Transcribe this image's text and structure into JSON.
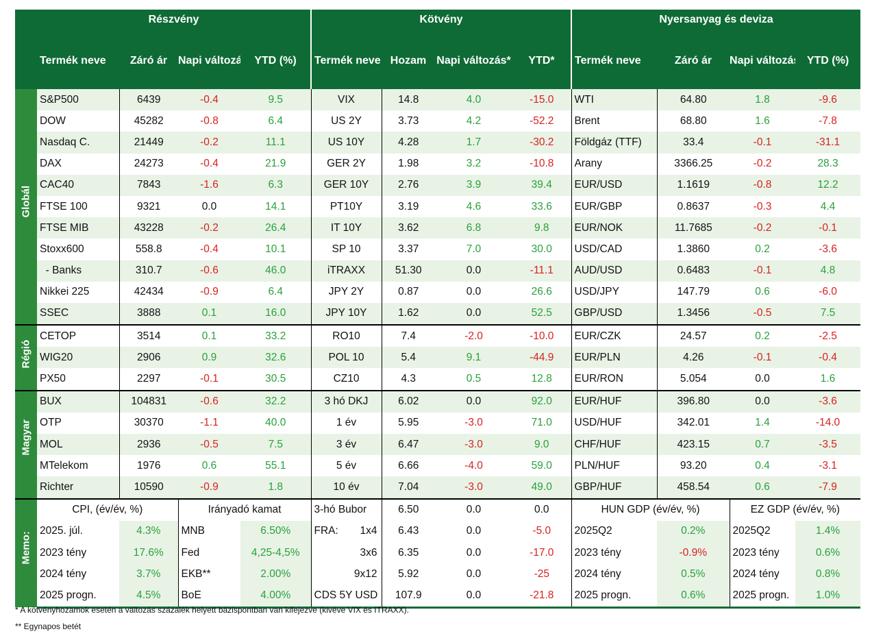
{
  "header": {
    "sections": [
      "Részvény",
      "Kötvény",
      "Nyersanyag és deviza"
    ],
    "stock_cols": [
      "Termék neve",
      "Záró ár",
      "Napi változás (%)",
      "YTD (%)"
    ],
    "bond_cols": [
      "Termék neve",
      "Hozam",
      "Napi változás*",
      "YTD*"
    ],
    "fx_cols": [
      "Termék neve",
      "Záró ár",
      "Napi változás (%)",
      "YTD (%)"
    ]
  },
  "groups": [
    {
      "label": "Globál",
      "rows": [
        {
          "s": [
            "S&P500",
            "6439",
            "-0.4",
            "9.5"
          ],
          "b": [
            "VIX",
            "14.8",
            "4.0",
            "-15.0"
          ],
          "f": [
            "WTI",
            "64.80",
            "1.8",
            "-9.6"
          ]
        },
        {
          "s": [
            "DOW",
            "45282",
            "-0.8",
            "6.4"
          ],
          "b": [
            "US 2Y",
            "3.73",
            "4.2",
            "-52.2"
          ],
          "f": [
            "Brent",
            "68.80",
            "1.6",
            "-7.8"
          ]
        },
        {
          "s": [
            "Nasdaq C.",
            "21449",
            "-0.2",
            "11.1"
          ],
          "b": [
            "US 10Y",
            "4.28",
            "1.7",
            "-30.2"
          ],
          "f": [
            "Földgáz (TTF)",
            "33.4",
            "-0.1",
            "-31.1"
          ]
        },
        {
          "s": [
            "DAX",
            "24273",
            "-0.4",
            "21.9"
          ],
          "b": [
            "GER 2Y",
            "1.98",
            "3.2",
            "-10.8"
          ],
          "f": [
            "Arany",
            "3366.25",
            "-0.2",
            "28.3"
          ]
        },
        {
          "s": [
            "CAC40",
            "7843",
            "-1.6",
            "6.3"
          ],
          "b": [
            "GER 10Y",
            "2.76",
            "3.9",
            "39.4"
          ],
          "f": [
            "EUR/USD",
            "1.1619",
            "-0.8",
            "12.2"
          ]
        },
        {
          "s": [
            "FTSE 100",
            "9321",
            "0.0",
            "14.1"
          ],
          "b": [
            "PT10Y",
            "3.19",
            "4.6",
            "33.6"
          ],
          "f": [
            "EUR/GBP",
            "0.8637",
            "-0.3",
            "4.4"
          ]
        },
        {
          "s": [
            "FTSE MIB",
            "43228",
            "-0.2",
            "26.4"
          ],
          "b": [
            "IT 10Y",
            "3.62",
            "6.8",
            "9.8"
          ],
          "f": [
            "EUR/NOK",
            "11.7685",
            "-0.2",
            "-0.1"
          ]
        },
        {
          "s": [
            "Stoxx600",
            "558.8",
            "-0.4",
            "10.1"
          ],
          "b": [
            "SP 10",
            "3.37",
            "7.0",
            "30.0"
          ],
          "f": [
            "USD/CAD",
            "1.3860",
            "0.2",
            "-3.6"
          ]
        },
        {
          "s": [
            "  - Banks",
            "310.7",
            "-0.6",
            "46.0"
          ],
          "b": [
            "iTRAXX",
            "51.30",
            "0.0",
            "-11.1"
          ],
          "f": [
            "AUD/USD",
            "0.6483",
            "-0.1",
            "4.8"
          ]
        },
        {
          "s": [
            "Nikkei 225",
            "42434",
            "-0.9",
            "6.4"
          ],
          "b": [
            "JPY 2Y",
            "0.87",
            "0.0",
            "26.6"
          ],
          "f": [
            "USD/JPY",
            "147.79",
            "0.6",
            "-6.0"
          ]
        },
        {
          "s": [
            "SSEC",
            "3888",
            "0.1",
            "16.0"
          ],
          "b": [
            "JPY 10Y",
            "1.62",
            "0.0",
            "52.5"
          ],
          "f": [
            "GBP/USD",
            "1.3456",
            "-0.5",
            "7.5"
          ]
        }
      ]
    },
    {
      "label": "Régió",
      "rows": [
        {
          "s": [
            "CETOP",
            "3514",
            "0.1",
            "33.2"
          ],
          "b": [
            "RO10",
            "7.4",
            "-2.0",
            "-10.0"
          ],
          "f": [
            "EUR/CZK",
            "24.57",
            "0.2",
            "-2.5"
          ]
        },
        {
          "s": [
            "WIG20",
            "2906",
            "0.9",
            "32.6"
          ],
          "b": [
            "POL 10",
            "5.4",
            "9.1",
            "-44.9"
          ],
          "f": [
            "EUR/PLN",
            "4.26",
            "-0.1",
            "-0.4"
          ]
        },
        {
          "s": [
            "PX50",
            "2297",
            "-0.1",
            "30.5"
          ],
          "b": [
            "CZ10",
            "4.3",
            "0.5",
            "12.8"
          ],
          "f": [
            "EUR/RON",
            "5.054",
            "0.0",
            "1.6"
          ]
        }
      ]
    },
    {
      "label": "Magyar",
      "rows": [
        {
          "s": [
            "BUX",
            "104831",
            "-0.6",
            "32.2"
          ],
          "b": [
            "3 hó DKJ",
            "6.02",
            "0.0",
            "92.0"
          ],
          "f": [
            "EUR/HUF",
            "396.80",
            "0.0",
            "-3.6"
          ]
        },
        {
          "s": [
            "OTP",
            "30370",
            "-1.1",
            "40.0"
          ],
          "b": [
            "1 év",
            "5.95",
            "-3.0",
            "71.0"
          ],
          "f": [
            "USD/HUF",
            "342.01",
            "1.4",
            "-14.0"
          ]
        },
        {
          "s": [
            "MOL",
            "2936",
            "-0.5",
            "7.5"
          ],
          "b": [
            "3 év",
            "6.47",
            "-3.0",
            "9.0"
          ],
          "f": [
            "CHF/HUF",
            "423.15",
            "0.7",
            "-3.5"
          ]
        },
        {
          "s": [
            "MTelekom",
            "1976",
            "0.6",
            "55.1"
          ],
          "b": [
            "5 év",
            "6.66",
            "-4.0",
            "59.0"
          ],
          "f": [
            "PLN/HUF",
            "93.20",
            "0.4",
            "-3.1"
          ]
        },
        {
          "s": [
            "Richter",
            "10590",
            "-0.9",
            "1.8"
          ],
          "b": [
            "10 év",
            "7.04",
            "-3.0",
            "49.0"
          ],
          "f": [
            "GBP/HUF",
            "458.54",
            "0.6",
            "-7.9"
          ]
        }
      ]
    }
  ],
  "memo": {
    "label": "Memo:",
    "cpi_header": "CPI, (év/év, %)",
    "rate_header": "Irányadó kamat",
    "hun_gdp_header": "HUN GDP (év/év, %)",
    "ez_gdp_header": "EZ GDP (év/év, %)",
    "fra_label": "FRA:",
    "rows": [
      {
        "cpi": [
          "2025. júl.",
          "4.3%"
        ],
        "rate": [
          "MNB",
          "6.50%"
        ],
        "bond": [
          "3-hó Bubor",
          "6.50",
          "0.0",
          "0.0"
        ],
        "hun": [
          "2025Q2",
          "0.2%"
        ],
        "ez": [
          "2025Q2",
          "1.4%"
        ]
      },
      {
        "cpi": [
          "2023 tény",
          "17.6%"
        ],
        "rate": [
          "Fed",
          "4,25-4,5%"
        ],
        "bond": [
          "1x4",
          "6.43",
          "0.0",
          "-5.0"
        ],
        "hun": [
          "2023 tény",
          "-0.9%"
        ],
        "ez": [
          "2023 tény",
          "0.6%"
        ]
      },
      {
        "cpi": [
          "2024 tény",
          "3.7%"
        ],
        "rate": [
          "EKB**",
          "2.00%"
        ],
        "bond": [
          "3x6",
          "6.35",
          "0.0",
          "-17.0"
        ],
        "hun": [
          "2024 tény",
          "0.5%"
        ],
        "ez": [
          "2024 tény",
          "0.8%"
        ]
      },
      {
        "cpi": [
          "2025 progn.",
          "4.5%"
        ],
        "rate": [
          "BoE",
          "4.00%"
        ],
        "bond": [
          "9x12",
          "5.92",
          "0.0",
          "-25"
        ],
        "hun": [
          "2025 progn.",
          "0.6%"
        ],
        "ez": [
          "2025 progn.",
          "1.0%"
        ]
      },
      {
        "cpi": [],
        "rate": [],
        "bond": [
          "CDS 5Y USD",
          "107.9",
          "0.0",
          "-21.8"
        ],
        "hun": [],
        "ez": []
      }
    ]
  },
  "footnotes": [
    "* A kötvényhozamok esetén a változás százalék helyett bázispontban van kifejezve (kivéve VIX és ITRAXX).",
    "** Egynapos betét"
  ],
  "colors": {
    "header": "#0e6b35",
    "side": "#2e8b3c",
    "stripe": "#e8f3e6",
    "positive": "#2aa03a",
    "negative": "#d92020"
  }
}
